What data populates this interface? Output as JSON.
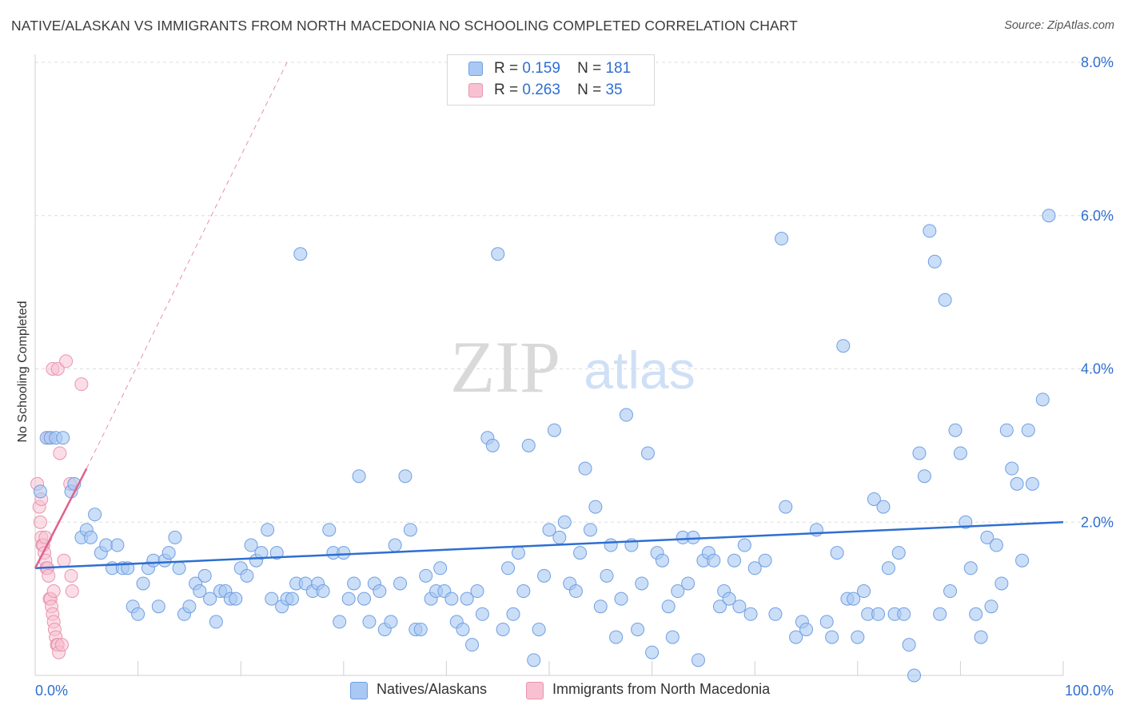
{
  "title": "NATIVE/ALASKAN VS IMMIGRANTS FROM NORTH MACEDONIA NO SCHOOLING COMPLETED CORRELATION CHART",
  "source": "Source: ZipAtlas.com",
  "watermark": {
    "zip": "ZIP",
    "atlas": "atlas"
  },
  "colors": {
    "blue_fill": "#a9c8f3",
    "blue_stroke": "#6f9fe0",
    "blue_line": "#2e6fd1",
    "pink_fill": "#f8c1d1",
    "pink_stroke": "#e994b0",
    "pink_line": "#e0608c",
    "accent_text": "#2e6fd1",
    "grid": "#dedede"
  },
  "legend": {
    "rows": [
      {
        "r_label": "R =",
        "r_value": "0.159",
        "n_label": "N =",
        "n_value": "181",
        "series": "blue"
      },
      {
        "r_label": "R =",
        "r_value": "0.263",
        "n_label": "N =",
        "n_value": "35",
        "series": "pink"
      }
    ]
  },
  "bottom_legend": [
    {
      "label": "Natives/Alaskans",
      "series": "blue"
    },
    {
      "label": "Immigrants from North Macedonia",
      "series": "pink"
    }
  ],
  "chart_data": {
    "type": "scatter",
    "title": "NATIVE/ALASKAN VS IMMIGRANTS FROM NORTH MACEDONIA NO SCHOOLING COMPLETED CORRELATION CHART",
    "xlabel": "",
    "ylabel": "No Schooling Completed",
    "xlim": [
      0,
      100
    ],
    "ylim": [
      0,
      8.0
    ],
    "x_tick_labels": [
      "0.0%",
      "100.0%"
    ],
    "y_ticks": [
      2.0,
      4.0,
      6.0,
      8.0
    ],
    "y_tick_labels": [
      "2.0%",
      "4.0%",
      "6.0%",
      "8.0%"
    ],
    "grid": true,
    "legend_position": "top-center",
    "series": [
      {
        "name": "Natives/Alaskans",
        "color": "#a9c8f3",
        "R": 0.159,
        "N": 181,
        "trend": {
          "x": [
            0,
            100
          ],
          "y": [
            1.4,
            2.0
          ]
        },
        "points": [
          [
            0.5,
            2.4
          ],
          [
            1.1,
            3.1
          ],
          [
            1.5,
            3.1
          ],
          [
            2.0,
            3.1
          ],
          [
            2.7,
            3.1
          ],
          [
            3.5,
            2.4
          ],
          [
            3.8,
            2.5
          ],
          [
            4.5,
            1.8
          ],
          [
            5.0,
            1.9
          ],
          [
            5.4,
            1.8
          ],
          [
            5.8,
            2.1
          ],
          [
            6.4,
            1.6
          ],
          [
            6.9,
            1.7
          ],
          [
            7.5,
            1.4
          ],
          [
            8.0,
            1.7
          ],
          [
            8.5,
            1.4
          ],
          [
            9.0,
            1.4
          ],
          [
            9.5,
            0.9
          ],
          [
            10.0,
            0.8
          ],
          [
            10.5,
            1.2
          ],
          [
            11.0,
            1.4
          ],
          [
            11.5,
            1.5
          ],
          [
            12.0,
            0.9
          ],
          [
            12.6,
            1.5
          ],
          [
            13.0,
            1.6
          ],
          [
            13.6,
            1.8
          ],
          [
            14.0,
            1.4
          ],
          [
            14.5,
            0.8
          ],
          [
            15.0,
            0.9
          ],
          [
            15.6,
            1.2
          ],
          [
            16.0,
            1.1
          ],
          [
            16.5,
            1.3
          ],
          [
            17.0,
            1.0
          ],
          [
            17.6,
            0.7
          ],
          [
            18.0,
            1.1
          ],
          [
            18.5,
            1.1
          ],
          [
            19.0,
            1.0
          ],
          [
            19.5,
            1.0
          ],
          [
            20.0,
            1.4
          ],
          [
            20.6,
            1.3
          ],
          [
            21.0,
            1.7
          ],
          [
            21.5,
            1.5
          ],
          [
            22.0,
            1.6
          ],
          [
            22.6,
            1.9
          ],
          [
            23.0,
            1.0
          ],
          [
            23.5,
            1.6
          ],
          [
            24.0,
            0.9
          ],
          [
            24.5,
            1.0
          ],
          [
            25.0,
            1.0
          ],
          [
            25.4,
            1.2
          ],
          [
            25.8,
            5.5
          ],
          [
            26.3,
            1.2
          ],
          [
            27.0,
            1.1
          ],
          [
            27.5,
            1.2
          ],
          [
            28.0,
            1.1
          ],
          [
            28.6,
            1.9
          ],
          [
            29.0,
            1.6
          ],
          [
            29.6,
            0.7
          ],
          [
            30.0,
            1.6
          ],
          [
            30.5,
            1.0
          ],
          [
            31.0,
            1.2
          ],
          [
            31.5,
            2.6
          ],
          [
            32.0,
            1.0
          ],
          [
            32.5,
            0.7
          ],
          [
            33.0,
            1.2
          ],
          [
            33.5,
            1.1
          ],
          [
            34.0,
            0.6
          ],
          [
            34.6,
            0.7
          ],
          [
            35.0,
            1.7
          ],
          [
            35.5,
            1.2
          ],
          [
            36.0,
            2.6
          ],
          [
            36.5,
            1.9
          ],
          [
            37.0,
            0.6
          ],
          [
            37.5,
            0.6
          ],
          [
            38.0,
            1.3
          ],
          [
            38.5,
            1.0
          ],
          [
            39.0,
            1.1
          ],
          [
            39.4,
            1.4
          ],
          [
            39.8,
            1.1
          ],
          [
            40.5,
            1.0
          ],
          [
            41.0,
            0.7
          ],
          [
            41.6,
            0.6
          ],
          [
            42.0,
            1.0
          ],
          [
            42.5,
            0.4
          ],
          [
            43.0,
            1.1
          ],
          [
            43.5,
            0.8
          ],
          [
            44.0,
            3.1
          ],
          [
            44.5,
            3.0
          ],
          [
            45.0,
            5.5
          ],
          [
            45.5,
            0.6
          ],
          [
            46.0,
            1.4
          ],
          [
            46.5,
            0.8
          ],
          [
            47.0,
            1.6
          ],
          [
            47.5,
            1.1
          ],
          [
            48.0,
            3.0
          ],
          [
            48.5,
            0.2
          ],
          [
            49.0,
            0.6
          ],
          [
            49.5,
            1.3
          ],
          [
            50.0,
            1.9
          ],
          [
            50.5,
            3.2
          ],
          [
            51.0,
            1.8
          ],
          [
            51.5,
            2.0
          ],
          [
            52.0,
            1.2
          ],
          [
            52.6,
            1.1
          ],
          [
            53.0,
            1.6
          ],
          [
            53.5,
            2.7
          ],
          [
            54.0,
            1.9
          ],
          [
            54.5,
            2.2
          ],
          [
            55.0,
            0.9
          ],
          [
            55.6,
            1.3
          ],
          [
            56.0,
            1.7
          ],
          [
            56.5,
            0.5
          ],
          [
            57.0,
            1.0
          ],
          [
            57.5,
            3.4
          ],
          [
            58.0,
            1.7
          ],
          [
            58.6,
            0.6
          ],
          [
            59.0,
            1.2
          ],
          [
            59.6,
            2.9
          ],
          [
            60.0,
            0.3
          ],
          [
            60.5,
            1.6
          ],
          [
            61.0,
            1.5
          ],
          [
            61.6,
            0.9
          ],
          [
            62.0,
            0.5
          ],
          [
            62.5,
            1.1
          ],
          [
            63.0,
            1.8
          ],
          [
            63.5,
            1.2
          ],
          [
            64.0,
            1.8
          ],
          [
            64.5,
            0.2
          ],
          [
            65.0,
            1.5
          ],
          [
            65.5,
            1.6
          ],
          [
            66.0,
            1.5
          ],
          [
            66.6,
            0.9
          ],
          [
            67.0,
            1.1
          ],
          [
            67.5,
            1.0
          ],
          [
            68.0,
            1.5
          ],
          [
            68.5,
            0.9
          ],
          [
            69.0,
            1.7
          ],
          [
            69.6,
            0.8
          ],
          [
            70.0,
            1.4
          ],
          [
            71.0,
            1.5
          ],
          [
            72.0,
            0.8
          ],
          [
            72.6,
            5.7
          ],
          [
            73.0,
            2.2
          ],
          [
            74.0,
            0.5
          ],
          [
            74.6,
            0.7
          ],
          [
            75.0,
            0.6
          ],
          [
            76.0,
            1.9
          ],
          [
            77.0,
            0.7
          ],
          [
            77.5,
            0.5
          ],
          [
            78.0,
            1.6
          ],
          [
            78.6,
            4.3
          ],
          [
            79.0,
            1.0
          ],
          [
            79.6,
            1.0
          ],
          [
            80.0,
            0.5
          ],
          [
            80.6,
            1.1
          ],
          [
            81.0,
            0.8
          ],
          [
            81.6,
            2.3
          ],
          [
            82.0,
            0.8
          ],
          [
            82.5,
            2.2
          ],
          [
            83.0,
            1.4
          ],
          [
            83.6,
            0.8
          ],
          [
            84.0,
            1.6
          ],
          [
            84.5,
            0.8
          ],
          [
            85.0,
            0.4
          ],
          [
            85.5,
            0.0
          ],
          [
            86.0,
            2.9
          ],
          [
            86.5,
            2.6
          ],
          [
            87.0,
            5.8
          ],
          [
            87.5,
            5.4
          ],
          [
            88.0,
            0.8
          ],
          [
            88.5,
            4.9
          ],
          [
            89.0,
            1.1
          ],
          [
            89.5,
            3.2
          ],
          [
            90.0,
            2.9
          ],
          [
            90.5,
            2.0
          ],
          [
            91.0,
            1.4
          ],
          [
            91.5,
            0.8
          ],
          [
            92.0,
            0.5
          ],
          [
            92.6,
            1.8
          ],
          [
            93.0,
            0.9
          ],
          [
            93.5,
            1.7
          ],
          [
            94.0,
            1.2
          ],
          [
            94.5,
            3.2
          ],
          [
            95.0,
            2.7
          ],
          [
            95.5,
            2.5
          ],
          [
            96.0,
            1.5
          ],
          [
            96.6,
            3.2
          ],
          [
            97.0,
            2.5
          ],
          [
            98.0,
            3.6
          ],
          [
            98.6,
            6.0
          ]
        ]
      },
      {
        "name": "Immigrants from North Macedonia",
        "color": "#f8c1d1",
        "R": 0.263,
        "N": 35,
        "trend_solid": {
          "x": [
            0,
            5
          ],
          "y": [
            1.4,
            2.7
          ]
        },
        "trend_dashed": {
          "x": [
            5,
            24.5
          ],
          "y": [
            2.7,
            8.0
          ]
        },
        "points": [
          [
            0.2,
            2.5
          ],
          [
            0.4,
            2.2
          ],
          [
            0.5,
            2.0
          ],
          [
            0.6,
            1.8
          ],
          [
            0.7,
            1.7
          ],
          [
            0.8,
            1.7
          ],
          [
            0.9,
            1.6
          ],
          [
            1.0,
            1.5
          ],
          [
            1.1,
            1.4
          ],
          [
            1.2,
            1.4
          ],
          [
            1.3,
            1.3
          ],
          [
            1.4,
            1.0
          ],
          [
            1.5,
            1.0
          ],
          [
            1.6,
            0.9
          ],
          [
            1.7,
            0.8
          ],
          [
            1.8,
            0.7
          ],
          [
            1.9,
            0.6
          ],
          [
            2.0,
            0.5
          ],
          [
            2.1,
            0.4
          ],
          [
            2.2,
            0.4
          ],
          [
            2.3,
            0.3
          ],
          [
            1.3,
            3.1
          ],
          [
            1.7,
            4.0
          ],
          [
            2.2,
            4.0
          ],
          [
            3.0,
            4.1
          ],
          [
            4.5,
            3.8
          ],
          [
            2.4,
            2.9
          ],
          [
            3.4,
            2.5
          ],
          [
            1.8,
            1.1
          ],
          [
            2.8,
            1.5
          ],
          [
            3.5,
            1.3
          ],
          [
            3.6,
            1.1
          ],
          [
            2.6,
            0.4
          ],
          [
            1.0,
            1.8
          ],
          [
            0.6,
            2.3
          ]
        ]
      }
    ]
  }
}
